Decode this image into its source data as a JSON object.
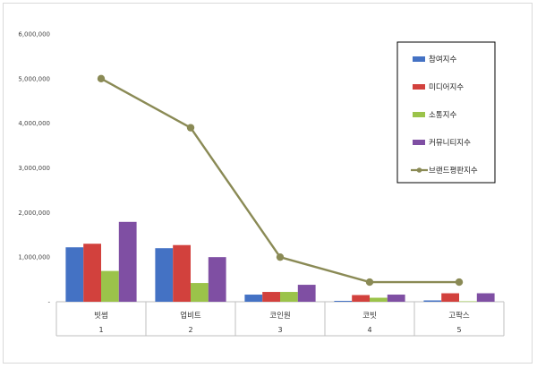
{
  "chart_data": {
    "type": "bar",
    "categories": [
      "빗썸",
      "업비트",
      "코인원",
      "코빗",
      "고팍스"
    ],
    "category_numbers": [
      "1",
      "2",
      "3",
      "4",
      "5"
    ],
    "ylim": [
      0,
      6000000
    ],
    "yticks": [
      0,
      1000000,
      2000000,
      3000000,
      4000000,
      5000000,
      6000000
    ],
    "ytick_labels": [
      "-",
      "1,000,000",
      "2,000,000",
      "3,000,000",
      "4,000,000",
      "5,000,000",
      "6,000,000"
    ],
    "series": [
      {
        "name": "참여지수",
        "type": "bar",
        "color": "#4472c4",
        "values": [
          1220000,
          1200000,
          160000,
          20000,
          30000
        ]
      },
      {
        "name": "미디어지수",
        "type": "bar",
        "color": "#d2413d",
        "values": [
          1300000,
          1270000,
          220000,
          150000,
          190000
        ]
      },
      {
        "name": "소통지수",
        "type": "bar",
        "color": "#9bc34a",
        "values": [
          690000,
          420000,
          220000,
          90000,
          10000
        ]
      },
      {
        "name": "커뮤니티지수",
        "type": "bar",
        "color": "#7f4fa3",
        "values": [
          1790000,
          1000000,
          380000,
          160000,
          190000
        ]
      },
      {
        "name": "브랜드평판지수",
        "type": "line",
        "color": "#8a8a55",
        "values": [
          5000000,
          3900000,
          1000000,
          440000,
          440000
        ]
      }
    ],
    "grid": false,
    "legend_position": "right"
  }
}
